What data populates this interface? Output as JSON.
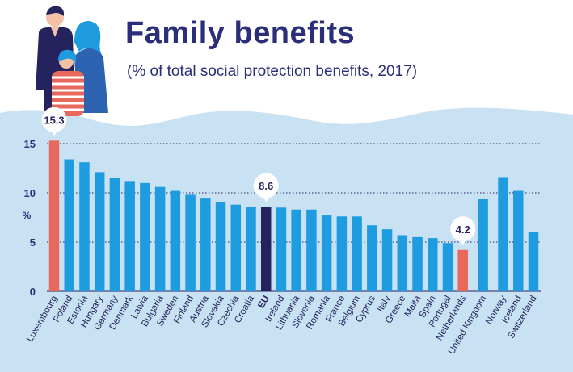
{
  "header": {
    "title": "Family benefits",
    "subtitle": "(% of total social protection benefits, 2017)"
  },
  "colors": {
    "bar": "#1f9be0",
    "highlight": "#e8685c",
    "eu": "#25235e",
    "wave": "#c9e2f3",
    "text": "#2b2f7a"
  },
  "illustration": {
    "icon": "family-icon"
  },
  "chart_data": {
    "type": "bar",
    "title": "Family benefits",
    "subtitle": "(% of total social protection benefits, 2017)",
    "xlabel": "",
    "ylabel": "%",
    "ylim": [
      0,
      16.5
    ],
    "yticks": [
      0,
      5,
      10,
      15
    ],
    "grid": "dotted horizontal at 5, 10, 15",
    "categories": [
      "Luxembourg",
      "Poland",
      "Estonia",
      "Hungary",
      "Germany",
      "Denmark",
      "Latvia",
      "Bulgaria",
      "Sweden",
      "Finland",
      "Austria",
      "Slovakia",
      "Czechia",
      "Croatia",
      "EU",
      "Ireland",
      "Lithuania",
      "Slovenia",
      "Romania",
      "France",
      "Belgium",
      "Cyprus",
      "Italy",
      "Greece",
      "Malta",
      "Spain",
      "Portugal",
      "Netherlands",
      "United Kingdom",
      "Norway",
      "Iceland",
      "Switzerland"
    ],
    "values": [
      15.3,
      13.4,
      13.1,
      12.1,
      11.5,
      11.2,
      11.0,
      10.6,
      10.2,
      9.8,
      9.5,
      9.1,
      8.8,
      8.6,
      8.6,
      8.5,
      8.3,
      8.3,
      7.7,
      7.6,
      7.6,
      6.7,
      6.3,
      5.7,
      5.5,
      5.4,
      4.9,
      4.2,
      9.4,
      11.6,
      10.2,
      6.0
    ],
    "highlighted": {
      "Luxembourg": "max",
      "Netherlands": "min",
      "EU": "eu"
    },
    "gaps_before": [
      "United Kingdom",
      "Norway"
    ],
    "data_labels": [
      {
        "category": "Luxembourg",
        "text": "15.3"
      },
      {
        "category": "EU",
        "text": "8.6"
      },
      {
        "category": "Netherlands",
        "text": "4.2"
      }
    ]
  }
}
